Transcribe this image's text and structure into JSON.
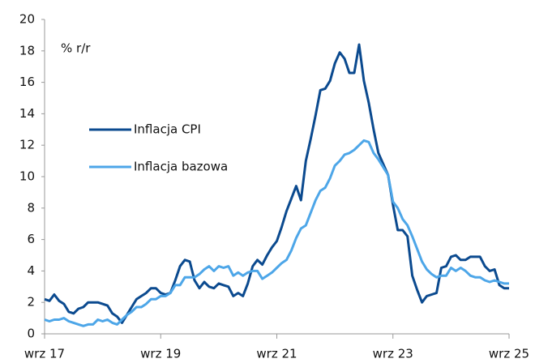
{
  "chart_data": {
    "type": "line",
    "annotation": "% r/r",
    "categories": [
      "wrz 17",
      null,
      null,
      null,
      null,
      null,
      null,
      null,
      null,
      null,
      null,
      null,
      null,
      null,
      null,
      null,
      null,
      null,
      null,
      null,
      null,
      null,
      null,
      null,
      "wrz 19",
      null,
      null,
      null,
      null,
      null,
      null,
      null,
      null,
      null,
      null,
      null,
      null,
      null,
      null,
      null,
      null,
      null,
      null,
      null,
      null,
      null,
      null,
      null,
      "wrz 21",
      null,
      null,
      null,
      null,
      null,
      null,
      null,
      null,
      null,
      null,
      null,
      null,
      null,
      null,
      null,
      null,
      null,
      null,
      null,
      null,
      null,
      null,
      null,
      "wrz 23",
      null,
      null,
      null,
      null,
      null,
      null,
      null,
      null,
      null,
      null,
      null,
      null,
      null,
      null,
      null,
      null,
      null,
      null,
      null,
      null,
      null,
      null,
      null,
      "wrz 25"
    ],
    "series": [
      {
        "name": "Inflacja CPI",
        "color": "#0b4a8f",
        "values": [
          2.2,
          2.1,
          2.5,
          2.1,
          1.9,
          1.4,
          1.3,
          1.6,
          1.7,
          2.0,
          2.0,
          2.0,
          1.9,
          1.8,
          1.3,
          1.1,
          0.7,
          1.2,
          1.7,
          2.2,
          2.4,
          2.6,
          2.9,
          2.9,
          2.6,
          2.5,
          2.6,
          3.4,
          4.3,
          4.7,
          4.6,
          3.4,
          2.9,
          3.3,
          3.0,
          2.9,
          3.2,
          3.1,
          3.0,
          2.4,
          2.6,
          2.4,
          3.2,
          4.3,
          4.7,
          4.4,
          5.0,
          5.5,
          5.9,
          6.8,
          7.8,
          8.6,
          9.4,
          8.5,
          11.0,
          12.4,
          13.9,
          15.5,
          15.6,
          16.1,
          17.2,
          17.9,
          17.5,
          16.6,
          16.6,
          18.4,
          16.1,
          14.7,
          13.0,
          11.5,
          10.8,
          10.1,
          8.2,
          6.6,
          6.6,
          6.2,
          3.7,
          2.8,
          2.0,
          2.4,
          2.5,
          2.6,
          4.2,
          4.3,
          4.9,
          5.0,
          4.7,
          4.7,
          4.9,
          4.9,
          4.9,
          4.3,
          4.0,
          4.1,
          3.1,
          2.9,
          2.9
        ]
      },
      {
        "name": "Inflacja bazowa",
        "color": "#4da6e8",
        "values": [
          0.9,
          0.8,
          0.9,
          0.9,
          1.0,
          0.8,
          0.7,
          0.6,
          0.5,
          0.6,
          0.6,
          0.9,
          0.8,
          0.9,
          0.7,
          0.6,
          0.9,
          1.2,
          1.4,
          1.7,
          1.7,
          1.9,
          2.2,
          2.2,
          2.4,
          2.4,
          2.6,
          3.1,
          3.1,
          3.6,
          3.6,
          3.6,
          3.8,
          4.1,
          4.3,
          4.0,
          4.3,
          4.2,
          4.3,
          3.7,
          3.9,
          3.7,
          3.9,
          4.0,
          4.0,
          3.5,
          3.7,
          3.9,
          4.2,
          4.5,
          4.7,
          5.3,
          6.1,
          6.7,
          6.9,
          7.7,
          8.5,
          9.1,
          9.3,
          9.9,
          10.7,
          11.0,
          11.4,
          11.5,
          11.7,
          12.0,
          12.3,
          12.2,
          11.5,
          11.1,
          10.6,
          10.1,
          8.4,
          8.0,
          7.3,
          6.9,
          6.2,
          5.4,
          4.6,
          4.1,
          3.8,
          3.6,
          3.7,
          3.7,
          4.2,
          4.0,
          4.2,
          4.0,
          3.7,
          3.6,
          3.6,
          3.4,
          3.3,
          3.4,
          3.3,
          3.2,
          3.2
        ]
      }
    ],
    "ylim": [
      0,
      20
    ],
    "yticks": [
      0,
      2,
      4,
      6,
      8,
      10,
      12,
      14,
      16,
      18,
      20
    ],
    "grid": false
  }
}
